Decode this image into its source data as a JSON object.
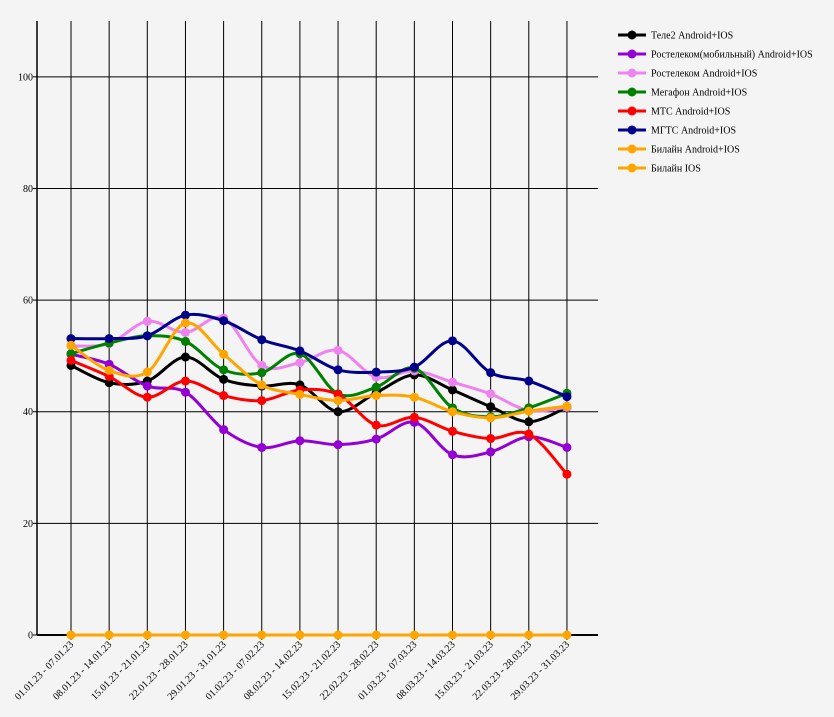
{
  "chart_data": {
    "type": "line",
    "title": "",
    "xlabel": "",
    "ylabel": "",
    "ylim": [
      0,
      110
    ],
    "yticks": [
      0,
      20,
      40,
      60,
      80,
      100
    ],
    "grid": true,
    "legend_position": "top-right",
    "categories": [
      "01.01.23 - 07.01.23",
      "08.01.23 - 14.01.23",
      "15.01.23 - 21.01.23",
      "22.01.23 - 28.01.23",
      "29.01.23 - 31.01.23",
      "01.02.23 - 07.02.23",
      "08.02.23 - 14.02.23",
      "15.02.23 - 21.02.23",
      "22.02.23 - 28.02.23",
      "01.03.23 - 07.03.23",
      "08.03.23 - 14.03.23",
      "15.03.23 - 21.03.23",
      "22.03.23 - 28.03.23",
      "29.03.23 - 31.03.23"
    ],
    "series": [
      {
        "name": "Теле2 Android+IOS",
        "color": "#000000",
        "values": [
          48.3,
          45.2,
          45.5,
          49.8,
          45.8,
          44.6,
          44.8,
          40.0,
          43.4,
          46.6,
          43.9,
          40.9,
          38.2,
          40.8
        ]
      },
      {
        "name": "Ростелеком(мобильный) Android+IOS",
        "color": "#9400d3",
        "values": [
          50.3,
          48.5,
          44.6,
          43.5,
          36.8,
          33.6,
          34.8,
          34.1,
          35.1,
          38.1,
          32.3,
          32.8,
          35.5,
          33.6
        ]
      },
      {
        "name": "Ростелеком Android+IOS",
        "color": "#ee82ee",
        "values": [
          51.8,
          52.2,
          56.2,
          54.2,
          56.8,
          48.3,
          48.8,
          51.0,
          46.2,
          47.3,
          45.3,
          43.2,
          40.2,
          40.8
        ]
      },
      {
        "name": "Мегафон Android+IOS",
        "color": "#008000",
        "values": [
          50.4,
          52.3,
          53.6,
          52.6,
          47.5,
          47.0,
          50.4,
          43.2,
          44.4,
          47.8,
          40.7,
          39.1,
          40.7,
          43.3
        ]
      },
      {
        "name": "МТС Android+IOS",
        "color": "#ff0000",
        "values": [
          49.2,
          46.3,
          42.6,
          45.5,
          42.9,
          42.0,
          43.9,
          43.1,
          37.6,
          39.0,
          36.5,
          35.2,
          36.0,
          28.8
        ]
      },
      {
        "name": "МГТС Android+IOS",
        "color": "#00008b",
        "values": [
          53.1,
          53.1,
          53.6,
          57.3,
          56.3,
          52.9,
          50.9,
          47.5,
          47.1,
          48.0,
          52.7,
          47.0,
          45.5,
          42.7
        ]
      },
      {
        "name": "Билайн Android+IOS",
        "color": "#ffa500",
        "values": [
          51.9,
          47.4,
          47.1,
          55.9,
          50.3,
          44.8,
          43.1,
          42.0,
          42.9,
          42.6,
          40.0,
          38.9,
          40.1,
          41.0
        ]
      },
      {
        "name": "Билайн IOS",
        "color": "#ffa500",
        "values": [
          0,
          0,
          0,
          0,
          0,
          0,
          0,
          0,
          0,
          0,
          0,
          0,
          0,
          0
        ]
      }
    ]
  }
}
